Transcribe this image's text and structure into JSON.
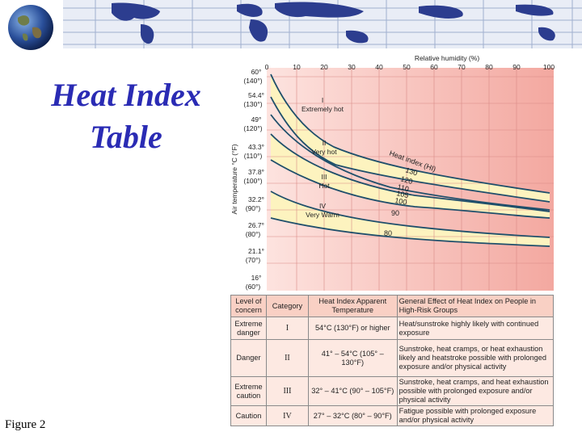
{
  "slide": {
    "title_line1": "Heat Index",
    "title_line2": "Table",
    "figure_label": "Figure 2"
  },
  "colors": {
    "title": "#2a2bb4",
    "band_yellow": "#fdf3bf",
    "band_pink": "#f6b3aa",
    "curve": "#1f4f6b"
  },
  "chart": {
    "top_label": "Relative humidity (%)",
    "y_axis_label": "Air temperature °C (°F)",
    "humidity_ticks": [
      "0",
      "10",
      "20",
      "30",
      "40",
      "50",
      "60",
      "70",
      "80",
      "90",
      "100"
    ],
    "temp_labels": [
      {
        "c": "60°",
        "f": "(140°)"
      },
      {
        "c": "54.4°",
        "f": "(130°)"
      },
      {
        "c": "49°",
        "f": "(120°)"
      },
      {
        "c": "43.3°",
        "f": "(110°)"
      },
      {
        "c": "37.8°",
        "f": "(100°)"
      },
      {
        "c": "32.2°",
        "f": "(90°)"
      },
      {
        "c": "26.7°",
        "f": "(80°)"
      },
      {
        "c": "21.1°",
        "f": "(70°)"
      },
      {
        "c": "16°",
        "f": "(60°)"
      }
    ],
    "zones": [
      {
        "roman": "I",
        "name": "Extremely hot"
      },
      {
        "roman": "II",
        "name": "Very hot"
      },
      {
        "roman": "III",
        "name": "Hot"
      },
      {
        "roman": "IV",
        "name": "Very Warm"
      }
    ],
    "curve_title": "Heat index (HI)",
    "curve_values": [
      "130",
      "120",
      "110",
      "105",
      "100",
      "90",
      "80"
    ]
  },
  "table": {
    "headers": [
      "Level of concern",
      "Category",
      "Heat Index Apparent Temperature",
      "General Effect of Heat Index on People in High-Risk Groups"
    ],
    "rows": [
      {
        "level": "Extreme danger",
        "category": "I",
        "temp": "54°C (130°F) or higher",
        "effect": "Heat/sunstroke highly likely with continued exposure"
      },
      {
        "level": "Danger",
        "category": "II",
        "temp": "41° – 54°C (105° – 130°F)",
        "effect": "Sunstroke, heat cramps, or heat exhaustion likely and heatstroke possible with prolonged exposure and/or physical activity"
      },
      {
        "level": "Extreme caution",
        "category": "III",
        "temp": "32° – 41°C (90° – 105°F)",
        "effect": "Sunstroke, heat cramps, and heat exhaustion possible with prolonged exposure and/or physical activity"
      },
      {
        "level": "Caution",
        "category": "IV",
        "temp": "27° – 32°C (80° – 90°F)",
        "effect": "Fatigue possible with prolonged exposure and/or physical activity"
      }
    ]
  }
}
